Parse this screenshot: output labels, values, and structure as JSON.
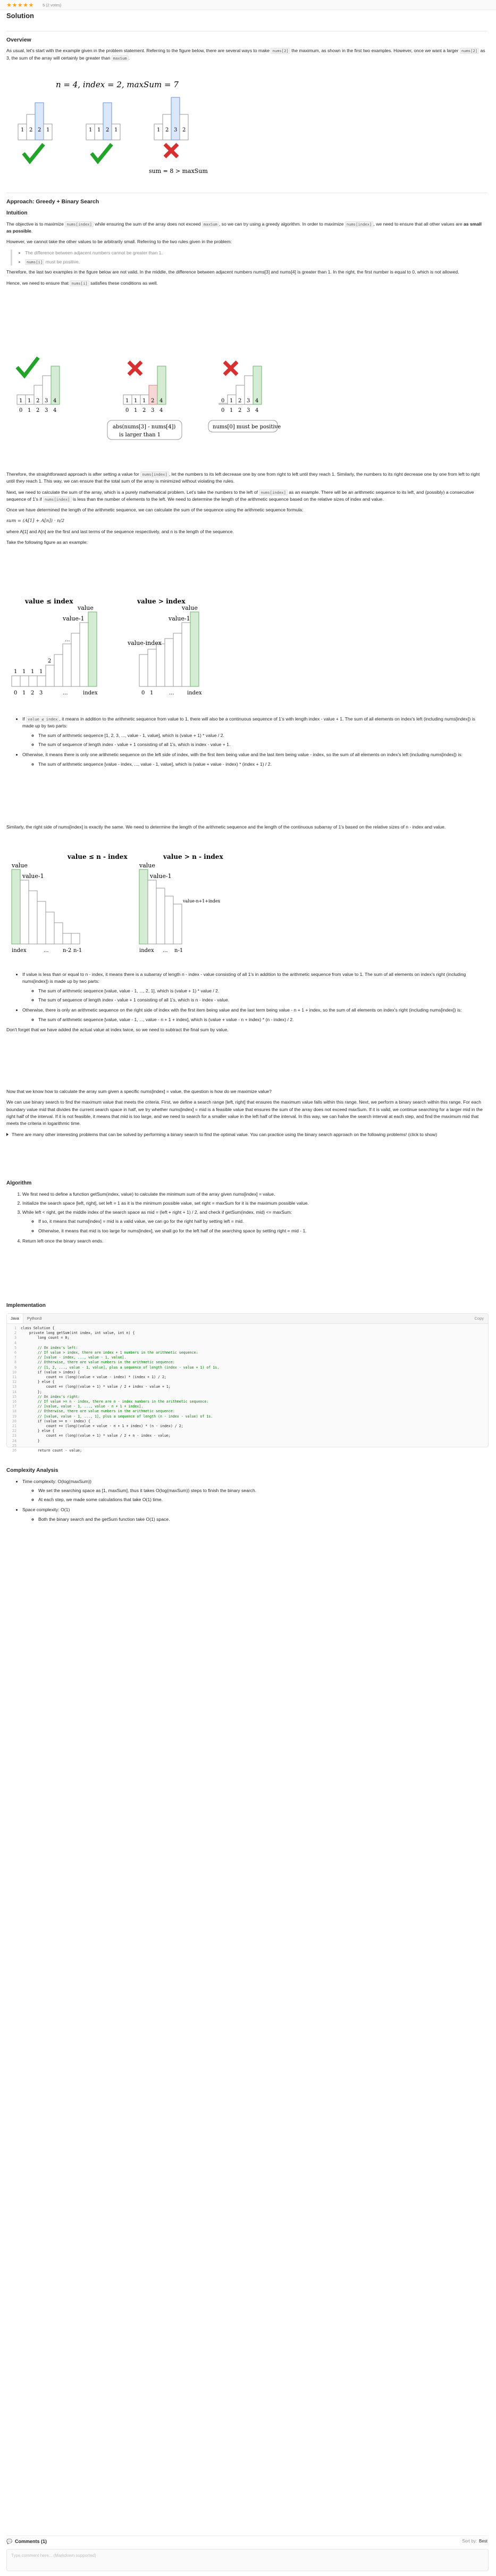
{
  "header": {
    "stars": "★★★★★",
    "rating_text": "5 (2 votes)",
    "section_title": "Solution"
  },
  "overview": {
    "heading": "Overview",
    "p1a": "As usual, let's start with the example given in the problem statement. Referring to the figure below, there are several ways to make ",
    "p1_code": "nums[2]",
    "p1b": " the maximum, as shown in the first two examples. However, once we want a larger ",
    "p1_code2": "nums[2]",
    "p1c": " as 3, the sum of the array will certainly be greater than ",
    "p1_code3": "maxSum",
    "p1d": ".",
    "fig_title": "n = 4,    index = 2,   maxSum = 7",
    "fig_sum": "sum = 8 > maxSum",
    "fig_arrays": [
      [
        "1",
        "2",
        "2",
        "1"
      ],
      [
        "1",
        "1",
        "2",
        "1"
      ],
      [
        "1",
        "2",
        "3",
        "2"
      ]
    ]
  },
  "approach": {
    "heading": "Approach: Greedy + Binary Search",
    "intuition": "Intuition",
    "p1a": "The objective is to maximize ",
    "p1_code": "nums[index]",
    "p1b": " while ensuring the sum of the array does not exceed ",
    "p1_code2": "maxSum",
    "p1c": ", so we can try using a greedy algorithm. In order to maximize ",
    "p1_code3": "nums[index]",
    "p1d": ", we need to ensure that all other values are ",
    "p1_bold": "as small as possible",
    "p1e": ".",
    "p2": "However, we cannot take the other values to be arbitrarily small. Referring to the two rules given in the problem:",
    "rule1": "The difference between adjacent numbers cannot be greater than 1.",
    "rule2_code": "nums[i]",
    "rule2": " must be positive.",
    "p3": "Therefore, the last two examples in the figure below are not valid. In the middle, the difference between adjacent numbers nums[3] and nums[4] is greater than 1. In the right, the first number is equal to 0, which is not allowed.",
    "p4a": "Hence, we need to ensure that ",
    "p4_code": "nums[i]",
    "p4b": " satisfies these conditions as well.",
    "fig2_label1": "abs(nums[3] - nums[4])",
    "fig2_label1b": "is larger than 1",
    "fig2_label2": "nums[0] must be positive",
    "fig2_ticks": [
      "0",
      "1",
      "2",
      "3",
      "4"
    ],
    "fig2_a": [
      "1",
      "1",
      "2",
      "3",
      "4"
    ],
    "fig2_b": [
      "1",
      "1",
      "1",
      "2",
      "4"
    ],
    "fig2_c": [
      "0",
      "1",
      "2",
      "3",
      "4"
    ]
  },
  "arith": {
    "p1a": "Therefore, the straightforward approach is after setting a value for ",
    "p1_code": "nums[index]",
    "p1b": ", let the numbers to its left decrease one by one from right to left until they reach 1. Similarly, the numbers to its right decrease one by one from left to right until they reach 1. This way, we can ensure that the total sum of the array is minimized without violating the rules.",
    "p2a": "Next, we need to calculate the sum of the array, which is a purely mathematical problem. Let's take the numbers to the left of ",
    "p2_code": "nums[index]",
    "p2b": " as an example. There will be an arithmetic sequence to its left, and (possibly) a consecutive sequence of 1's if ",
    "p2_code2": "nums[index]",
    "p2c": " is less than the number of elements to the left. We need to determine the length of the arithmetic sequence based on the relative sizes of index and value.",
    "p3": "Once we have determined the length of the arithmetic sequence, we can calculate the sum of the sequence using the arithmetic sequence formula:",
    "formula": "sum = (A[1] + A[n]) · n/2",
    "p4": "where A[1] and A[n] are the first and last terms of the sequence respectively, and n is the length of the sequence.",
    "p5": "Take the following figure as an example:",
    "fig3_left_title": "value ≤ index",
    "fig3_right_title": "value > index",
    "fig3_value": "value",
    "fig3_value1": "value-1",
    "fig3_vi": "value-index",
    "fig3_ticks": [
      "0",
      "1",
      "2",
      "3",
      "...",
      "index"
    ]
  },
  "left_case": {
    "b1a": "If ",
    "b1_code": "value ≤ index",
    "b1b": ", it means in addition to the arithmetic sequence from value to 1, there will also be a continuous sequence of 1's with length index - value + 1. The sum of all elements on index's left (including nums[index]) is made up by two parts:",
    "s1": "The sum of arithmetic sequence [1, 2, 3, ..., value - 1, value], which is (value + 1) * value / 2.",
    "s2": "The sum of sequence of length index - value + 1 consisting of all 1's, which is index - value + 1.",
    "b2": "Otherwise, it means there is only one arithmetic sequence on the left side of index, with the first item being value and the last item being value - index, so the sum of all elements on index's left (including nums[index]) is:",
    "s3": "The sum of arithmetic sequence [value - index, ..., value - 1, value], which is (value + value - index) * (index + 1) / 2."
  },
  "right_case": {
    "p1": "Similarly, the right side of nums[index] is exactly the same. We need to determine the length of the arithmetic sequence and the length of the continuous subarray of 1's based on the relative sizes of n - index and value.",
    "fig4_left_title": "value ≤ n - index",
    "fig4_right_title": "value > n - index",
    "fig4_value": "value",
    "fig4_value1": "value-1",
    "fig4_vn": "value-n+1+index",
    "fig4_ticks": [
      "index",
      "...",
      "n-2",
      "n-1"
    ],
    "fig4_ticks_r": [
      "index",
      "...",
      "n-1"
    ],
    "b1": "If value is less than or equal to n - index, it means there is a subarray of length n - index - value consisting of all 1's in addition to the arithmetic sequence from value to 1. The sum of all elements on index's right (including nums[index]) is made up by two parts:",
    "s1": "The sum of arithmetic sequence [value, value - 1, ..., 2, 1], which is (value + 1) * value / 2.",
    "s2": "The sum of sequence of length index - value + 1 consisting of all 1's, which is n - index - value.",
    "b2": "Otherwise, there is only an arithmetic sequence on the right side of index with the first item being value and the last term being value - n + 1 + index, so the sum of all elements on index's right (including nums[index]) is:",
    "s3": "The sum of arithmetic sequence [value, value - 1, ..., value - n + 1 + index], which is (value + value - n + index) * (n - index) / 2.",
    "p2": "Don't forget that we have added the actual value at index twice, so we need to subtract the final sum by value."
  },
  "bsearch": {
    "p1": "Now that we know how to calculate the array sum given a specific nums[index] = value, the question is how do we maximize value?",
    "p2": "We can use binary search to find the maximum value that meets the criteria. First, we define a search range [left, right] that ensures the maximum value falls within this range. Next, we perform a binary search within this range. For each boundary value mid that divides the current search space in half, we try whether nums[index] = mid is a feasible value that ensures the sum of the array does not exceed maxSum. If it is valid, we continue searching for a larger mid in the right half of the interval. If it is not feasible, it means that mid is too large, and we need to search for a smaller value in the left half of the interval. In this way, we can halve the search interval at each step, and find the maximum mid that meets the criteria in logarithmic time.",
    "toggle": "There are many other interesting problems that can be solved by performing a binary search to find the optimal value. You can practice using the binary search approach on the following problems! (click to show)"
  },
  "algorithm": {
    "heading": "Algorithm",
    "s1": "We first need to define a function getSum(index, value) to calculate the minimum sum of the array given nums[index] = value.",
    "s2": "Initialize the search space [left, right], set left = 1 as it is the minimum possible value, set right = maxSum for it is the maximum possible value.",
    "s3": "While left < right, get the middle index of the search space as mid = (left + right + 1) / 2, and check if getSum(index, mid) <= maxSum:",
    "s3a": "If so, it means that nums[index] = mid is a valid value, we can go for the right half by setting left = mid.",
    "s3b": "Otherwise, it means that mid is too large for nums[index], we shall go for the left half of the searching space by setting right = mid - 1.",
    "s4": "Return left once the binary search ends."
  },
  "implementation": {
    "heading": "Implementation",
    "tabs": [
      "Java",
      "Python3"
    ],
    "copy": "Copy",
    "lines": [
      "class Solution {",
      "    private long getSum(int index, int value, int n) {",
      "        long count = 0;",
      "",
      "        // On index's left:",
      "        // If value > index, there are index + 1 numbers in the arithmetic sequence:",
      "        // [value - index, ..., value - 1, value].",
      "        // Otherwise, there are value numbers in the arithmetic sequence:",
      "        // [1, 2, ..., value - 1, value], plus a sequence of length (index - value + 1) of 1s.",
      "        if (value > index) {",
      "            count += (long)(value + value - index) * (index + 1) / 2;",
      "        } else {",
      "            count += (long)(value + 1) * value / 2 + index - value + 1;",
      "        };",
      "        // On index's right:",
      "        // If value >= n - index, there are n - index numbers in the arithmetic sequence:",
      "        // [value, value - 1, ..., value - n + 1 + index].",
      "        // Otherwise, there are value numbers in the arithmetic sequence:",
      "        // [value, value - 1, ..., 1], plus a sequence of length (n - index - value) of 1s.",
      "        if (value >= n - index) {",
      "            count += (long)(value + value - n + 1 + index) * (n - index) / 2;",
      "        } else {",
      "            count += (long)(value + 1) * value / 2 + n - index - value;",
      "        }",
      "",
      "        return count - value;"
    ]
  },
  "complexity": {
    "heading": "Complexity Analysis",
    "time": "Time complexity: O(log(maxSum))",
    "time_s1": "We set the searching space as [1, maxSum], thus it takes O(log(maxSum)) steps to finish the binary search.",
    "time_s2": "At each step, we made some calculations that take O(1) time.",
    "space": "Space complexity: O(1)",
    "space_s1": "Both the binary search and the getSum function take O(1) space."
  },
  "footer": {
    "comments": "Comments (1)",
    "sort_label": "Sort by:",
    "sort_value": "Best",
    "placeholder": "Type comment here... (Markdown supported)"
  }
}
